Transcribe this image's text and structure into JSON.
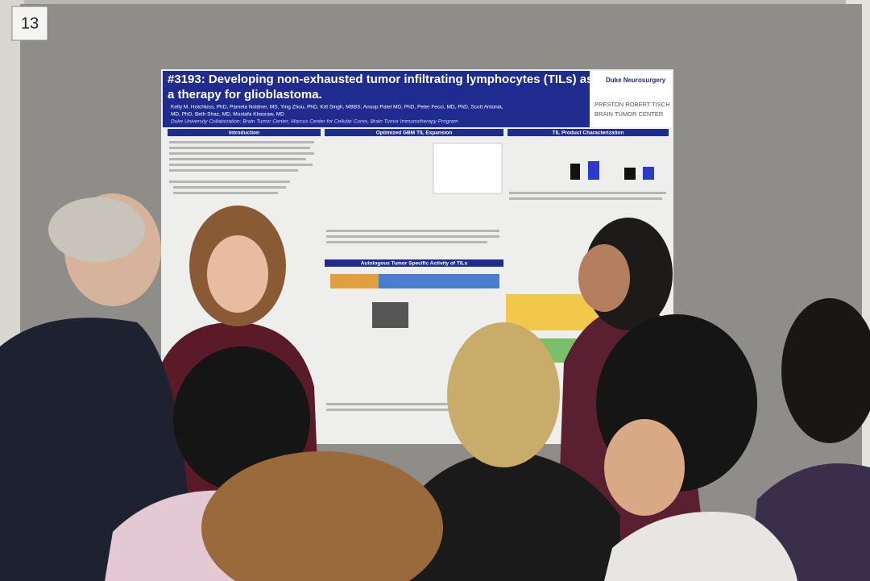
{
  "sign": "13",
  "poster": {
    "title_lines": [
      "#3193: Developing non-exhausted tumor infiltrating lymphocytes (TILs) as",
      "a therapy for glioblastoma."
    ],
    "author_lines": [
      "Kelly M. Hotchkiss, PhD, Pamela Noldner, MS, Ying Zhou, PhD, Krit Singh, MBBS, Anoop Patel MD, PhD, Peter Fecci, MD, PhD, Scott Antonia,",
      "MD, PhD, Beth Shaz, MD, Mustafa Khasraw, MD"
    ],
    "affiliation": "Duke University Collaboration: Brain Tumor Center, Marcus Center for Cellular Cures, Brain Tumor Immunotherapy Program",
    "logo": [
      "Duke Neurosurgery",
      "PRESTON ROBERT TISCH",
      "BRAIN TUMOR CENTER"
    ],
    "sections": [
      "Introduction",
      "Optimized GBM TIL Expansion",
      "TIL Product Characterization",
      "Autologous Tumor Specific Activity of TILs"
    ]
  }
}
